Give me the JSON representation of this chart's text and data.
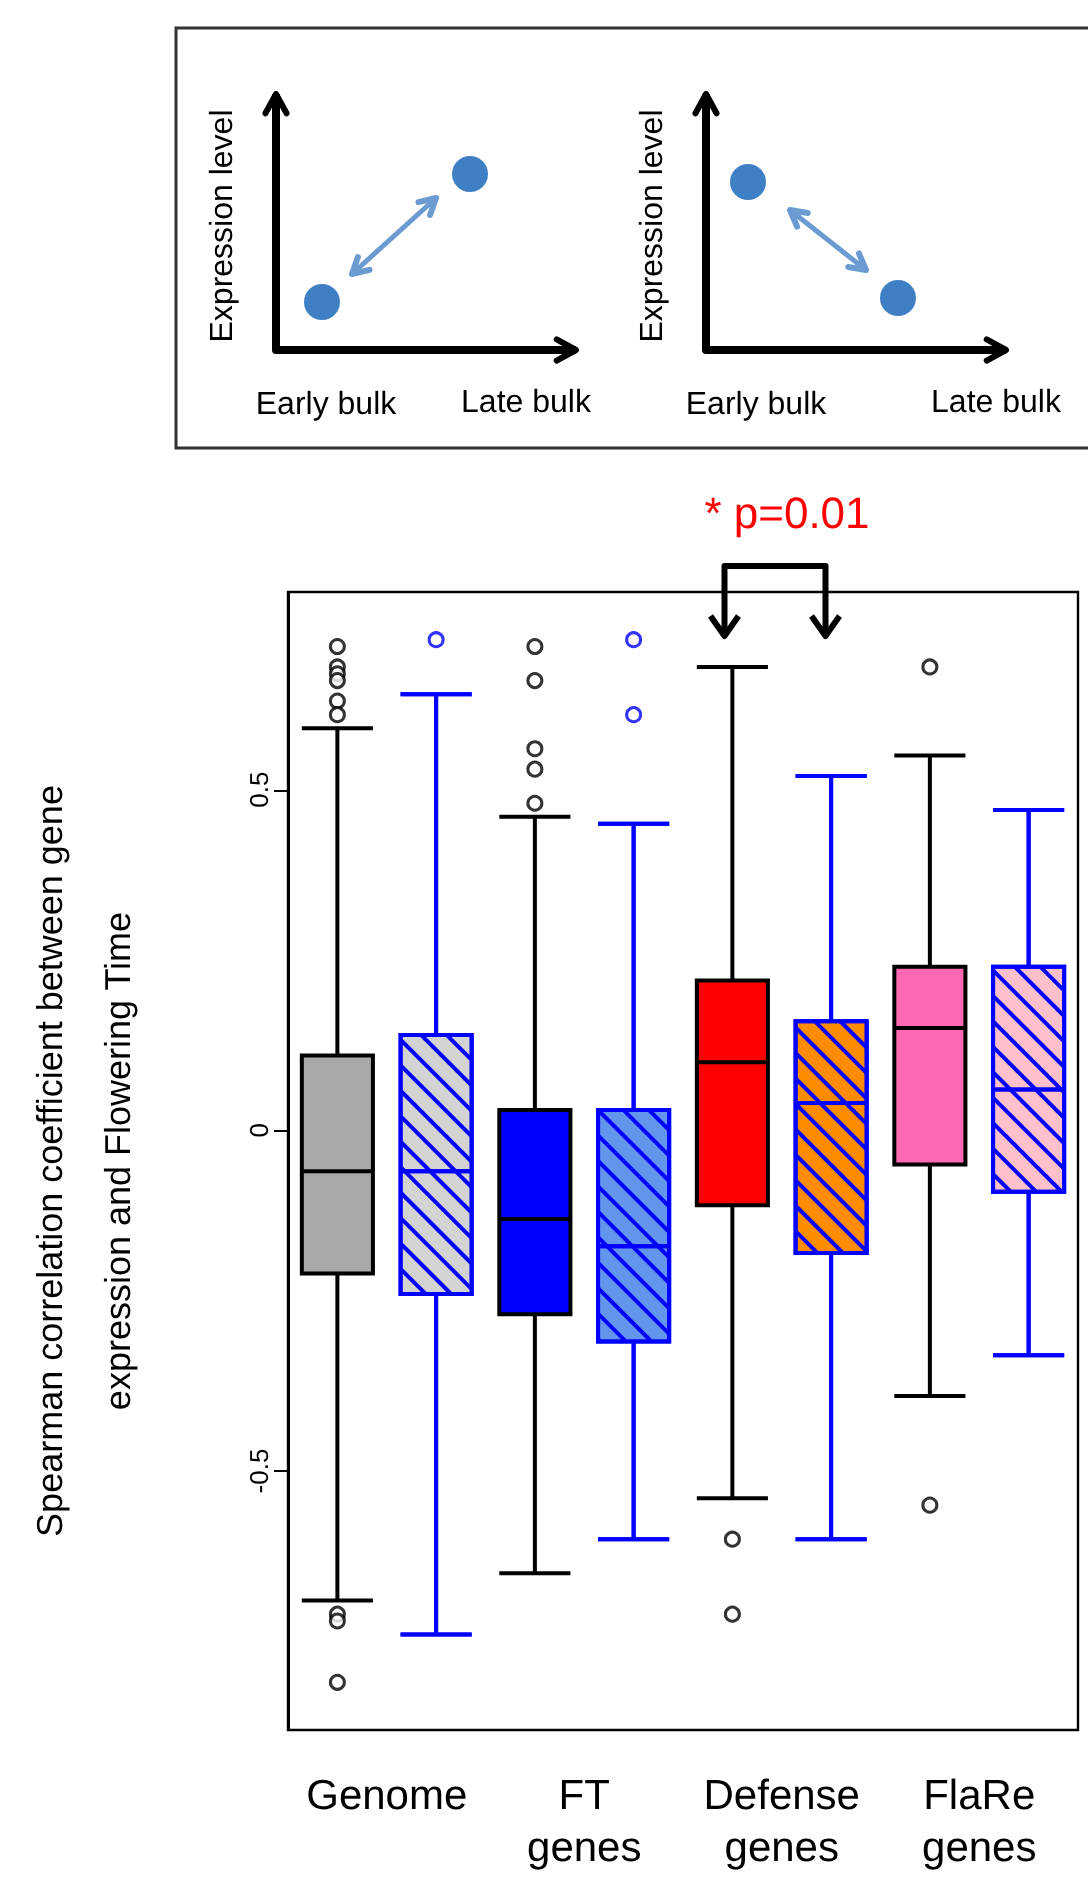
{
  "chart_data": {
    "type": "box",
    "ylabel": "Spearman correlation coefficient between gene expression and Flowering Time",
    "categories": [
      "Genome",
      "FT genes",
      "Defense genes",
      "FlaRe genes"
    ],
    "ylim": [
      -0.88,
      0.79
    ],
    "yticks": [
      -0.5,
      0,
      0.5
    ],
    "series": [
      {
        "color": "#000000",
        "colors": [
          "#a9a9a9",
          "#0000ff",
          "#ff0000",
          "#ff69b4"
        ],
        "boxes": [
          {
            "low": -0.69,
            "q1": -0.21,
            "median": -0.06,
            "q3": 0.11,
            "high": 0.59,
            "outliers": [
              0.71,
              0.68,
              0.67,
              0.66,
              0.63,
              0.61,
              -0.71,
              -0.72,
              -0.81
            ]
          },
          {
            "low": -0.65,
            "q1": -0.27,
            "median": -0.13,
            "q3": 0.03,
            "high": 0.46,
            "outliers": [
              0.71,
              0.66,
              0.56,
              0.53,
              0.48
            ]
          },
          {
            "low": -0.54,
            "q1": -0.11,
            "median": 0.1,
            "q3": 0.22,
            "high": 0.68,
            "outliers": [
              -0.6,
              -0.71
            ]
          },
          {
            "low": -0.39,
            "q1": -0.05,
            "median": 0.15,
            "q3": 0.24,
            "high": 0.55,
            "outliers": [
              0.68,
              -0.55
            ]
          }
        ]
      },
      {
        "color": "#0000ff",
        "colors": [
          "#d3d3d3",
          "#6495ed",
          "#ff8c00",
          "#ffc0cb"
        ],
        "boxes": [
          {
            "low": -0.74,
            "q1": -0.24,
            "median": -0.06,
            "q3": 0.14,
            "high": 0.64,
            "outliers": [
              0.72
            ]
          },
          {
            "low": -0.6,
            "q1": -0.31,
            "median": -0.17,
            "q3": 0.03,
            "high": 0.45,
            "outliers": [
              0.72,
              0.61
            ]
          },
          {
            "low": -0.6,
            "q1": -0.18,
            "median": 0.04,
            "q3": 0.16,
            "high": 0.52
          },
          {
            "low": -0.33,
            "q1": -0.09,
            "median": 0.06,
            "q3": 0.24,
            "high": 0.47
          }
        ]
      }
    ],
    "annotations": [
      "Expression level",
      "Early bulk",
      "Late bulk",
      "Expression level",
      "Early bulk",
      "Late bulk",
      "* p=0.01"
    ]
  }
}
